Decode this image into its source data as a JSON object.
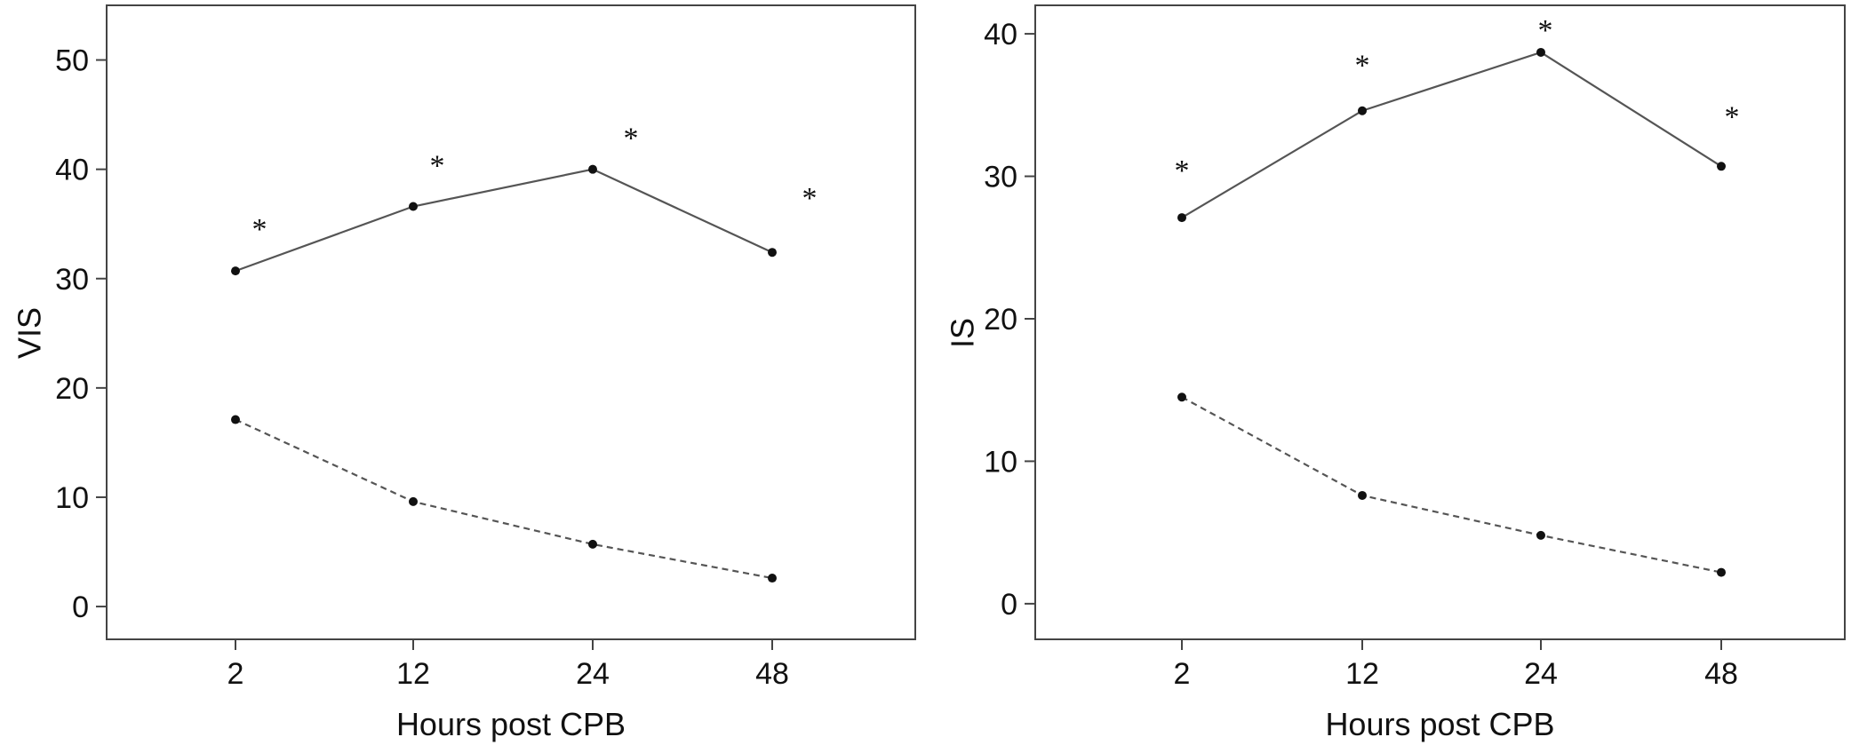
{
  "chart_data": [
    {
      "type": "line",
      "ylabel": "VIS",
      "xlabel": "Hours post CPB",
      "categories": [
        "2",
        "12",
        "24",
        "48"
      ],
      "ylim": [
        -3,
        55
      ],
      "yticks": [
        0,
        10,
        20,
        30,
        40,
        50
      ],
      "grid": false,
      "series": [
        {
          "line_style": "solid",
          "color": "#555555",
          "values": [
            30.7,
            36.6,
            40.0,
            32.4
          ],
          "annotations": [
            "*",
            "*",
            "*",
            "*"
          ]
        },
        {
          "line_style": "dashed",
          "color": "#555555",
          "values": [
            17.1,
            9.6,
            5.7,
            2.6
          ]
        }
      ]
    },
    {
      "type": "line",
      "ylabel": "IS",
      "xlabel": "Hours post CPB",
      "categories": [
        "2",
        "12",
        "24",
        "48"
      ],
      "ylim": [
        -2.5,
        42
      ],
      "yticks": [
        0,
        10,
        20,
        30,
        40
      ],
      "grid": false,
      "series": [
        {
          "line_style": "solid",
          "color": "#555555",
          "values": [
            27.1,
            34.6,
            38.7,
            30.7
          ],
          "annotations": [
            "*",
            "*",
            "*",
            "*"
          ]
        },
        {
          "line_style": "dashed",
          "color": "#555555",
          "values": [
            14.5,
            7.6,
            4.8,
            2.2
          ]
        }
      ]
    }
  ]
}
